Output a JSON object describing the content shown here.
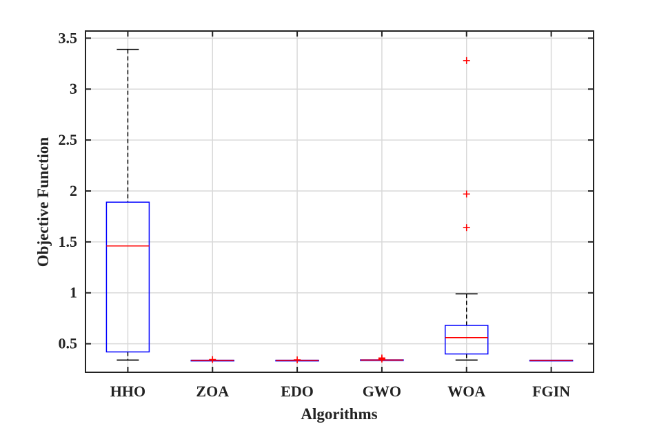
{
  "chart_data": {
    "type": "boxplot",
    "xlabel": "Algorithms",
    "ylabel": "Objective Function",
    "ylim": [
      0.22,
      3.57
    ],
    "yticks": [
      0.5,
      1,
      1.5,
      2,
      2.5,
      3,
      3.5
    ],
    "ytick_labels": [
      "0.5",
      "1",
      "1.5",
      "2",
      "2.5",
      "3",
      "3.5"
    ],
    "grid": true,
    "categories": [
      "HHO",
      "ZOA",
      "EDO",
      "GWO",
      "WOA",
      "FGIN"
    ],
    "boxes": [
      {
        "label": "HHO",
        "min": 0.34,
        "q1": 0.42,
        "median": 1.46,
        "q3": 1.89,
        "max": 3.39,
        "outliers": []
      },
      {
        "label": "ZOA",
        "min": 0.338,
        "q1": 0.338,
        "median": 0.338,
        "q3": 0.338,
        "max": 0.338,
        "outliers": [
          0.345
        ]
      },
      {
        "label": "EDO",
        "min": 0.338,
        "q1": 0.338,
        "median": 0.338,
        "q3": 0.338,
        "max": 0.338,
        "outliers": [
          0.342
        ]
      },
      {
        "label": "GWO",
        "min": 0.34,
        "q1": 0.34,
        "median": 0.34,
        "q3": 0.342,
        "max": 0.342,
        "outliers": [
          0.35,
          0.36
        ]
      },
      {
        "label": "WOA",
        "min": 0.34,
        "q1": 0.4,
        "median": 0.56,
        "q3": 0.68,
        "max": 0.99,
        "outliers": [
          1.64,
          1.97,
          3.28
        ]
      },
      {
        "label": "FGIN",
        "min": 0.338,
        "q1": 0.338,
        "median": 0.338,
        "q3": 0.338,
        "max": 0.338,
        "outliers": []
      }
    ],
    "colors": {
      "box": "#0000ff",
      "median": "#ff0000",
      "whisker": "#000000",
      "outlier": "#ff0000",
      "grid": "#d9d9d9",
      "axis": "#222222"
    }
  }
}
